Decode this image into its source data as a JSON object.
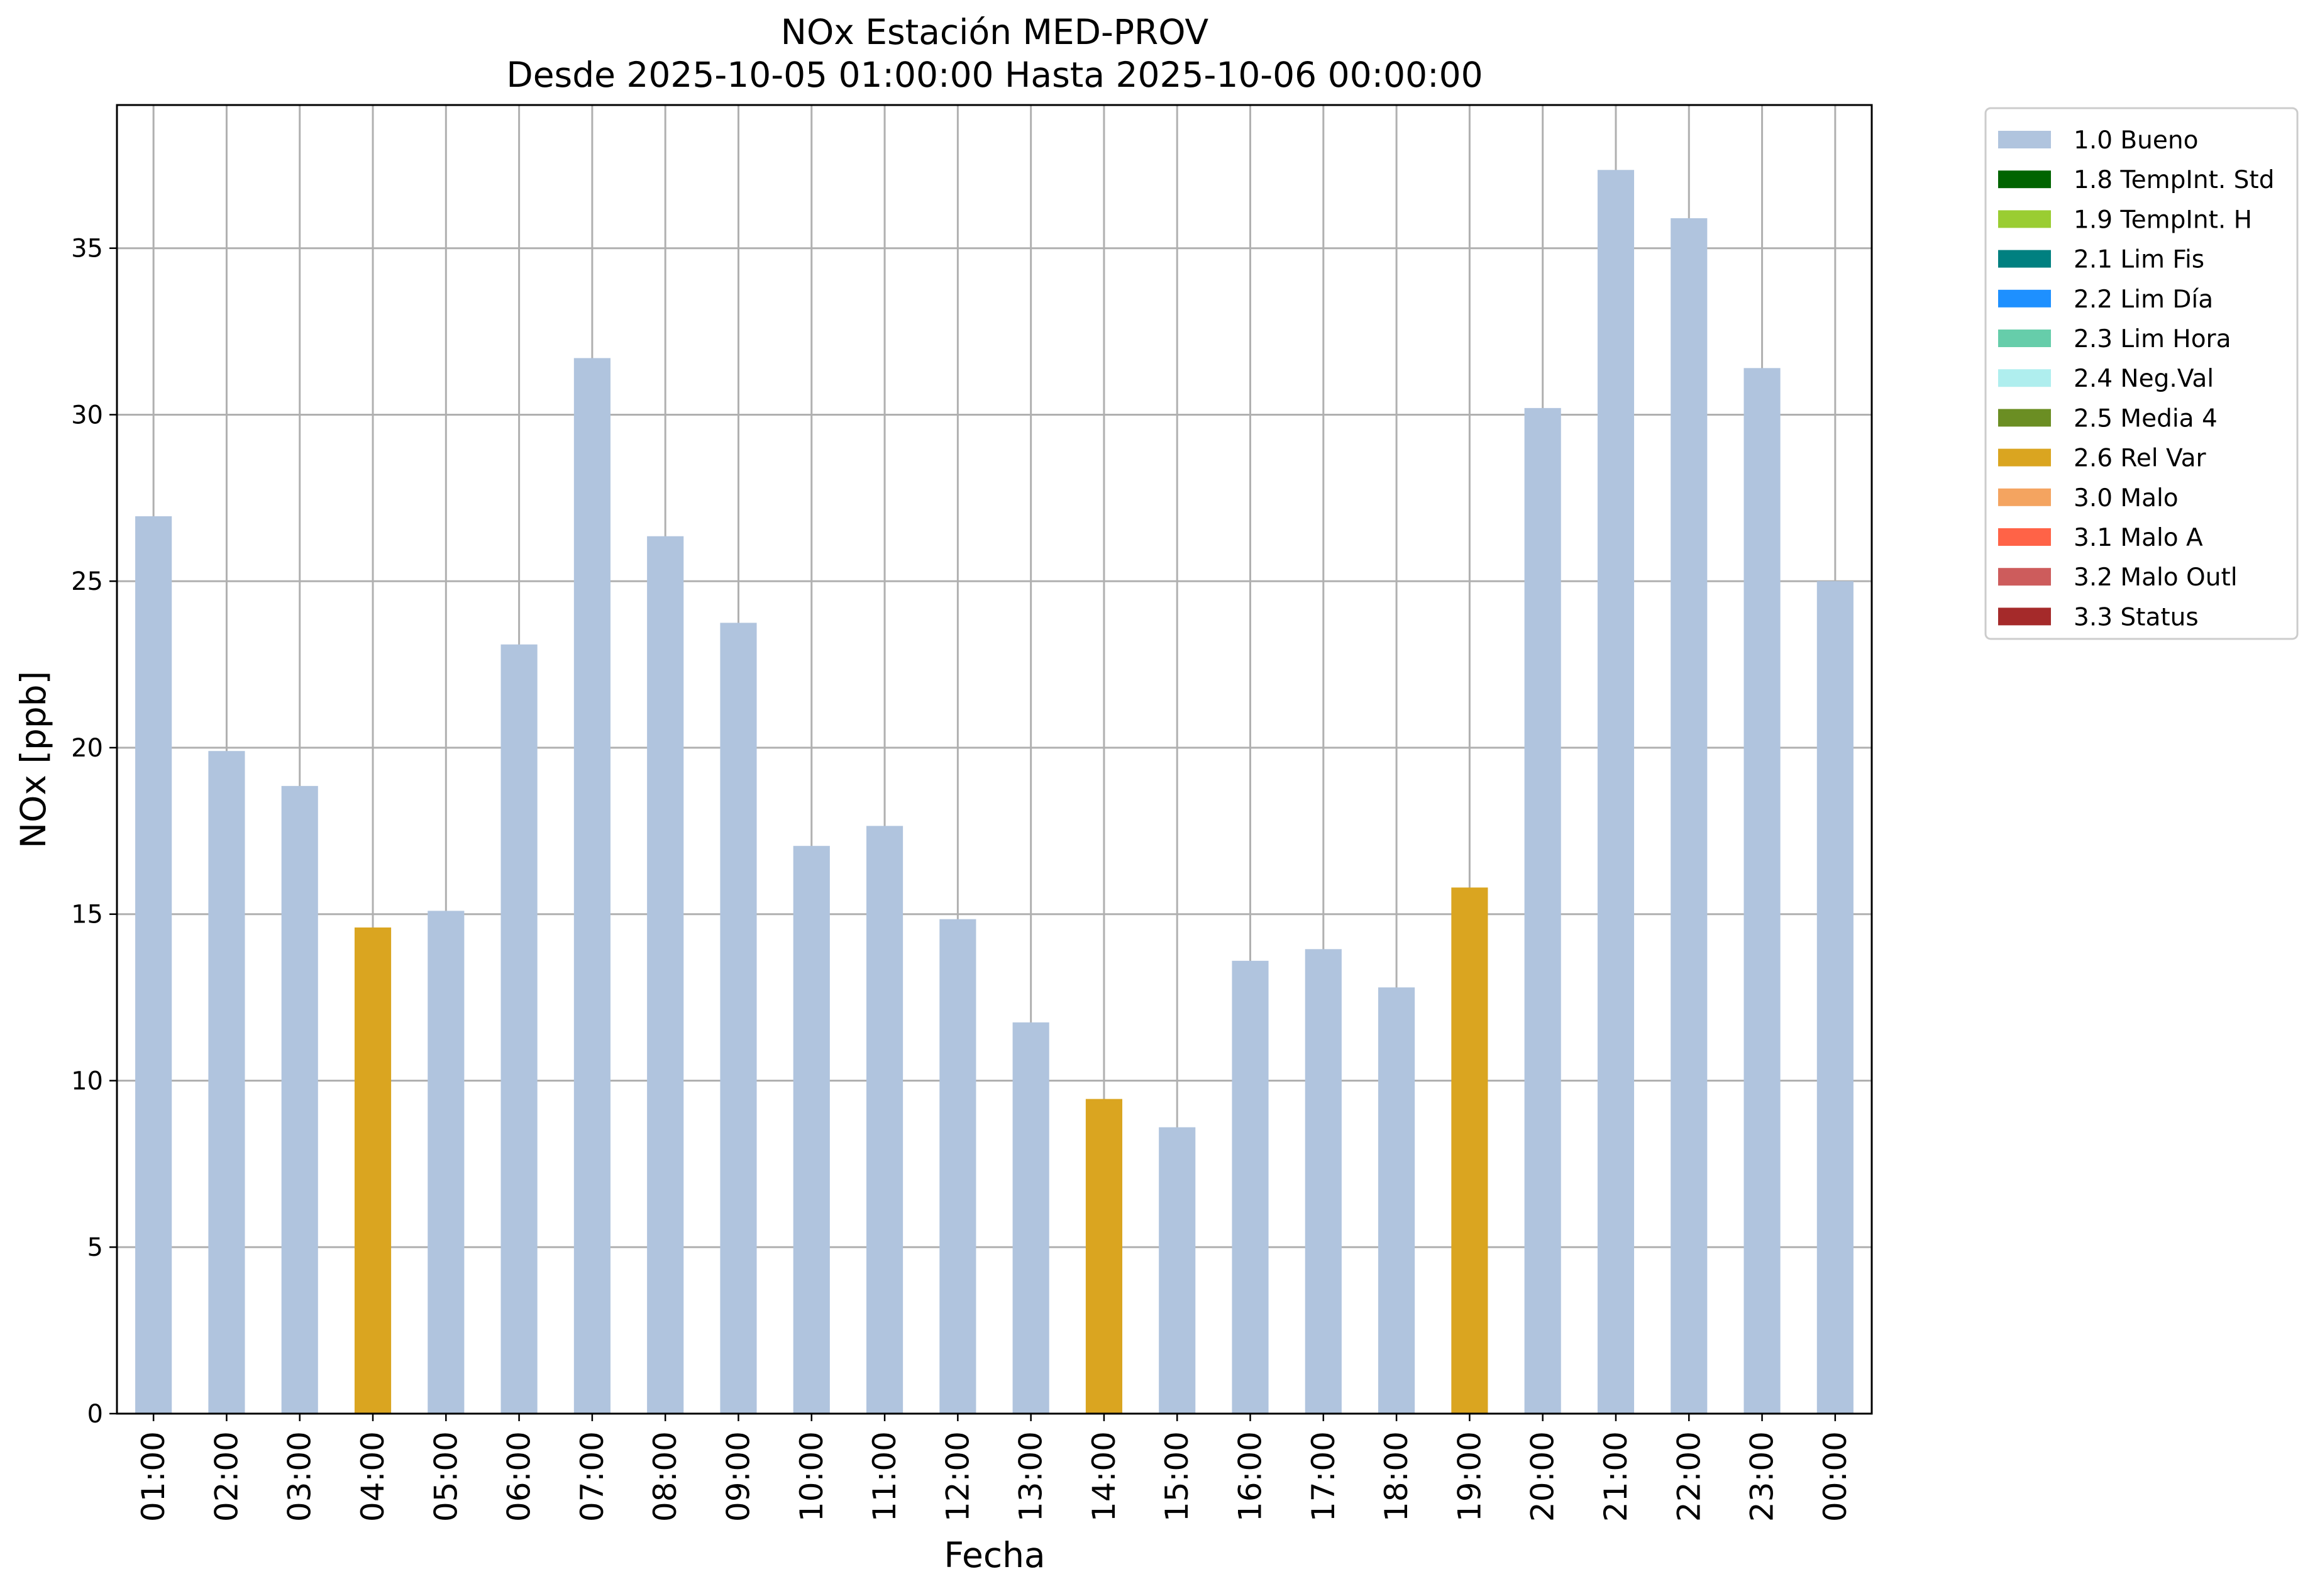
{
  "chart_data": {
    "type": "bar",
    "title": "NOx Estación MED-PROV",
    "subtitle": "Desde 2025-10-05 01:00:00 Hasta 2025-10-06 00:00:00",
    "xlabel": "Fecha",
    "ylabel": "NOx [ppb]",
    "ylim": [
      0,
      39.3
    ],
    "yticks": [
      0,
      5,
      10,
      15,
      20,
      25,
      30,
      35
    ],
    "grid": true,
    "legend_position": "outside-right-top",
    "categories": [
      "01:00",
      "02:00",
      "03:00",
      "04:00",
      "05:00",
      "06:00",
      "07:00",
      "08:00",
      "09:00",
      "10:00",
      "11:00",
      "12:00",
      "13:00",
      "14:00",
      "15:00",
      "16:00",
      "17:00",
      "18:00",
      "19:00",
      "20:00",
      "21:00",
      "22:00",
      "23:00",
      "00:00"
    ],
    "values": [
      26.95,
      19.9,
      18.85,
      14.6,
      15.1,
      23.1,
      31.7,
      26.35,
      23.75,
      17.05,
      17.65,
      14.85,
      11.75,
      9.45,
      8.6,
      13.6,
      13.95,
      12.8,
      15.8,
      30.2,
      37.35,
      35.9,
      31.4,
      25.0
    ],
    "flags": [
      "1.0 Bueno",
      "1.0 Bueno",
      "1.0 Bueno",
      "2.6 Rel Var",
      "1.0 Bueno",
      "1.0 Bueno",
      "1.0 Bueno",
      "1.0 Bueno",
      "1.0 Bueno",
      "1.0 Bueno",
      "1.0 Bueno",
      "1.0 Bueno",
      "1.0 Bueno",
      "2.6 Rel Var",
      "1.0 Bueno",
      "1.0 Bueno",
      "1.0 Bueno",
      "1.0 Bueno",
      "2.6 Rel Var",
      "1.0 Bueno",
      "1.0 Bueno",
      "1.0 Bueno",
      "1.0 Bueno",
      "1.0 Bueno"
    ],
    "legend": [
      {
        "label": "1.0 Bueno",
        "color": "#b0c4de"
      },
      {
        "label": "1.8 TempInt. Std",
        "color": "#006400"
      },
      {
        "label": "1.9 TempInt. H",
        "color": "#9acd32"
      },
      {
        "label": "2.1 Lim Fis",
        "color": "#008080"
      },
      {
        "label": "2.2 Lim Día",
        "color": "#1e90ff"
      },
      {
        "label": "2.3 Lim Hora",
        "color": "#66cdaa"
      },
      {
        "label": "2.4 Neg.Val",
        "color": "#afeeee"
      },
      {
        "label": "2.5 Media 4",
        "color": "#6b8e23"
      },
      {
        "label": "2.6 Rel Var",
        "color": "#daa520"
      },
      {
        "label": "3.0 Malo",
        "color": "#f4a460"
      },
      {
        "label": "3.1 Malo A",
        "color": "#ff6347"
      },
      {
        "label": "3.2 Malo Outl",
        "color": "#cd5c5c"
      },
      {
        "label": "3.3 Status",
        "color": "#a52a2a"
      }
    ]
  }
}
